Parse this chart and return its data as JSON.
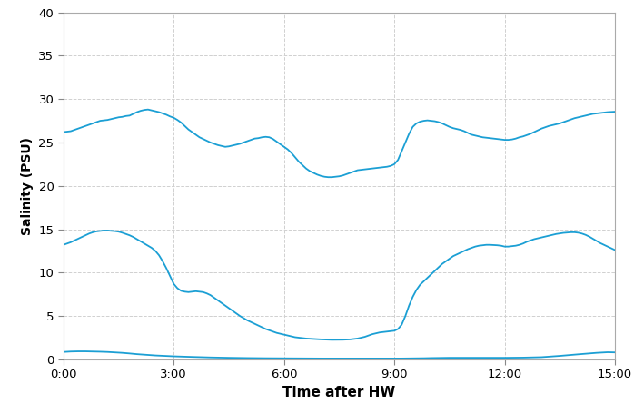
{
  "line_color": "#1b9fd4",
  "background_color": "#ffffff",
  "ylabel": "Salinity (PSU)",
  "xlabel": "Time after HW",
  "xlabel_fontsize": 11,
  "ylabel_fontsize": 10,
  "ylim": [
    0,
    40
  ],
  "yticks": [
    0,
    5,
    10,
    15,
    20,
    25,
    30,
    35,
    40
  ],
  "xtick_labels": [
    "0:00",
    "3:00",
    "6:00",
    "9:00",
    "12:00",
    "15:00"
  ],
  "xtick_positions": [
    0,
    3,
    6,
    9,
    12,
    15
  ],
  "total_hours": 15,
  "line_width": 1.3,
  "grid_color": "#d0d0d0",
  "grid_linestyle": "--",
  "tick_fontsize": 9.5,
  "station_high": {
    "t": [
      0.0,
      0.1,
      0.2,
      0.3,
      0.4,
      0.5,
      0.6,
      0.7,
      0.8,
      0.9,
      1.0,
      1.1,
      1.2,
      1.3,
      1.4,
      1.5,
      1.6,
      1.7,
      1.8,
      1.9,
      2.0,
      2.1,
      2.2,
      2.3,
      2.4,
      2.5,
      2.6,
      2.7,
      2.8,
      2.9,
      3.0,
      3.1,
      3.2,
      3.3,
      3.4,
      3.5,
      3.6,
      3.7,
      3.8,
      3.9,
      4.0,
      4.1,
      4.2,
      4.3,
      4.4,
      4.5,
      4.6,
      4.7,
      4.8,
      4.9,
      5.0,
      5.1,
      5.2,
      5.3,
      5.4,
      5.5,
      5.6,
      5.7,
      5.8,
      5.9,
      6.0,
      6.1,
      6.2,
      6.3,
      6.4,
      6.5,
      6.6,
      6.7,
      6.8,
      6.9,
      7.0,
      7.1,
      7.2,
      7.3,
      7.4,
      7.5,
      7.6,
      7.7,
      7.8,
      7.9,
      8.0,
      8.1,
      8.2,
      8.3,
      8.4,
      8.5,
      8.6,
      8.7,
      8.8,
      8.9,
      9.0,
      9.1,
      9.2,
      9.3,
      9.4,
      9.5,
      9.6,
      9.7,
      9.8,
      9.9,
      10.0,
      10.1,
      10.2,
      10.3,
      10.4,
      10.5,
      10.6,
      10.7,
      10.8,
      10.9,
      11.0,
      11.1,
      11.2,
      11.3,
      11.4,
      11.5,
      11.6,
      11.7,
      11.8,
      11.9,
      12.0,
      12.1,
      12.2,
      12.3,
      12.4,
      12.5,
      12.6,
      12.7,
      12.8,
      12.9,
      13.0,
      13.1,
      13.2,
      13.3,
      13.4,
      13.5,
      13.6,
      13.7,
      13.8,
      13.9,
      14.0,
      14.1,
      14.2,
      14.3,
      14.4,
      14.5,
      14.6,
      14.7,
      14.8,
      14.9,
      15.0
    ],
    "v": [
      26.2,
      26.25,
      26.3,
      26.45,
      26.6,
      26.75,
      26.9,
      27.05,
      27.2,
      27.35,
      27.5,
      27.55,
      27.6,
      27.7,
      27.8,
      27.9,
      27.95,
      28.05,
      28.1,
      28.3,
      28.5,
      28.65,
      28.75,
      28.8,
      28.7,
      28.6,
      28.5,
      28.35,
      28.2,
      28.0,
      27.85,
      27.6,
      27.3,
      26.9,
      26.5,
      26.2,
      25.9,
      25.6,
      25.4,
      25.2,
      25.0,
      24.85,
      24.7,
      24.6,
      24.5,
      24.55,
      24.65,
      24.75,
      24.85,
      25.0,
      25.15,
      25.3,
      25.45,
      25.5,
      25.6,
      25.65,
      25.6,
      25.4,
      25.1,
      24.8,
      24.5,
      24.2,
      23.8,
      23.3,
      22.8,
      22.4,
      22.0,
      21.7,
      21.5,
      21.3,
      21.15,
      21.05,
      21.0,
      21.0,
      21.05,
      21.1,
      21.2,
      21.35,
      21.5,
      21.65,
      21.8,
      21.85,
      21.9,
      21.95,
      22.0,
      22.05,
      22.1,
      22.15,
      22.2,
      22.3,
      22.5,
      23.0,
      24.0,
      25.0,
      26.0,
      26.8,
      27.2,
      27.4,
      27.5,
      27.55,
      27.5,
      27.45,
      27.35,
      27.2,
      27.0,
      26.8,
      26.65,
      26.55,
      26.45,
      26.3,
      26.1,
      25.9,
      25.8,
      25.7,
      25.6,
      25.55,
      25.5,
      25.45,
      25.4,
      25.35,
      25.3,
      25.3,
      25.35,
      25.45,
      25.6,
      25.7,
      25.85,
      26.0,
      26.2,
      26.4,
      26.6,
      26.75,
      26.9,
      27.0,
      27.1,
      27.2,
      27.35,
      27.5,
      27.65,
      27.8,
      27.9,
      28.0,
      28.1,
      28.2,
      28.3,
      28.35,
      28.4,
      28.45,
      28.5,
      28.52,
      28.55
    ]
  },
  "station_mid": {
    "t": [
      0.0,
      0.1,
      0.2,
      0.3,
      0.4,
      0.5,
      0.6,
      0.7,
      0.8,
      0.9,
      1.0,
      1.1,
      1.2,
      1.3,
      1.4,
      1.5,
      1.6,
      1.7,
      1.8,
      1.9,
      2.0,
      2.1,
      2.2,
      2.3,
      2.4,
      2.5,
      2.6,
      2.7,
      2.8,
      2.9,
      3.0,
      3.1,
      3.2,
      3.3,
      3.4,
      3.5,
      3.6,
      3.7,
      3.8,
      3.9,
      4.0,
      4.1,
      4.2,
      4.3,
      4.4,
      4.5,
      4.6,
      4.7,
      4.8,
      4.9,
      5.0,
      5.1,
      5.2,
      5.3,
      5.4,
      5.5,
      5.6,
      5.7,
      5.8,
      5.9,
      6.0,
      6.1,
      6.2,
      6.3,
      6.4,
      6.5,
      6.6,
      6.7,
      6.8,
      6.9,
      7.0,
      7.1,
      7.2,
      7.3,
      7.4,
      7.5,
      7.6,
      7.7,
      7.8,
      7.9,
      8.0,
      8.1,
      8.2,
      8.3,
      8.4,
      8.5,
      8.6,
      8.7,
      8.8,
      8.9,
      9.0,
      9.1,
      9.2,
      9.3,
      9.4,
      9.5,
      9.6,
      9.7,
      9.8,
      9.9,
      10.0,
      10.1,
      10.2,
      10.3,
      10.4,
      10.5,
      10.6,
      10.7,
      10.8,
      10.9,
      11.0,
      11.1,
      11.2,
      11.3,
      11.4,
      11.5,
      11.6,
      11.7,
      11.8,
      11.9,
      12.0,
      12.1,
      12.2,
      12.3,
      12.4,
      12.5,
      12.6,
      12.7,
      12.8,
      12.9,
      13.0,
      13.1,
      13.2,
      13.3,
      13.4,
      13.5,
      13.6,
      13.7,
      13.8,
      13.9,
      14.0,
      14.1,
      14.2,
      14.3,
      14.4,
      14.5,
      14.6,
      14.7,
      14.8,
      14.9,
      15.0
    ],
    "v": [
      13.2,
      13.35,
      13.5,
      13.7,
      13.9,
      14.1,
      14.3,
      14.5,
      14.65,
      14.75,
      14.8,
      14.85,
      14.85,
      14.82,
      14.78,
      14.72,
      14.6,
      14.45,
      14.3,
      14.1,
      13.85,
      13.6,
      13.35,
      13.1,
      12.85,
      12.5,
      12.0,
      11.3,
      10.5,
      9.6,
      8.7,
      8.2,
      7.9,
      7.8,
      7.75,
      7.8,
      7.85,
      7.8,
      7.75,
      7.6,
      7.4,
      7.1,
      6.8,
      6.5,
      6.2,
      5.9,
      5.6,
      5.3,
      5.0,
      4.75,
      4.5,
      4.3,
      4.1,
      3.9,
      3.7,
      3.5,
      3.35,
      3.2,
      3.05,
      2.95,
      2.85,
      2.75,
      2.65,
      2.55,
      2.5,
      2.45,
      2.4,
      2.38,
      2.35,
      2.32,
      2.3,
      2.28,
      2.26,
      2.25,
      2.25,
      2.25,
      2.26,
      2.28,
      2.3,
      2.35,
      2.4,
      2.5,
      2.6,
      2.75,
      2.9,
      3.0,
      3.1,
      3.15,
      3.2,
      3.25,
      3.3,
      3.5,
      4.0,
      5.0,
      6.2,
      7.2,
      8.0,
      8.6,
      9.0,
      9.4,
      9.8,
      10.2,
      10.6,
      11.0,
      11.3,
      11.6,
      11.9,
      12.1,
      12.3,
      12.5,
      12.7,
      12.85,
      13.0,
      13.1,
      13.15,
      13.2,
      13.2,
      13.18,
      13.15,
      13.1,
      13.0,
      13.0,
      13.05,
      13.1,
      13.2,
      13.35,
      13.55,
      13.7,
      13.85,
      13.95,
      14.05,
      14.15,
      14.25,
      14.35,
      14.45,
      14.52,
      14.58,
      14.62,
      14.65,
      14.65,
      14.6,
      14.5,
      14.35,
      14.15,
      13.9,
      13.65,
      13.4,
      13.2,
      13.0,
      12.8,
      12.6
    ]
  },
  "station_low": {
    "t": [
      0.0,
      0.2,
      0.4,
      0.6,
      0.8,
      1.0,
      1.2,
      1.4,
      1.6,
      1.8,
      2.0,
      2.5,
      3.0,
      3.5,
      4.0,
      4.5,
      5.0,
      5.5,
      6.0,
      6.5,
      7.0,
      7.5,
      8.0,
      8.5,
      9.0,
      9.2,
      9.4,
      9.6,
      9.8,
      10.0,
      10.5,
      11.0,
      11.5,
      12.0,
      12.5,
      13.0,
      13.5,
      14.0,
      14.5,
      14.8,
      15.0
    ],
    "v": [
      0.85,
      0.9,
      0.92,
      0.92,
      0.9,
      0.88,
      0.85,
      0.8,
      0.75,
      0.68,
      0.6,
      0.45,
      0.35,
      0.28,
      0.22,
      0.18,
      0.15,
      0.13,
      0.12,
      0.11,
      0.1,
      0.1,
      0.1,
      0.1,
      0.1,
      0.1,
      0.11,
      0.12,
      0.13,
      0.15,
      0.18,
      0.18,
      0.18,
      0.18,
      0.2,
      0.25,
      0.4,
      0.58,
      0.75,
      0.82,
      0.8
    ]
  }
}
